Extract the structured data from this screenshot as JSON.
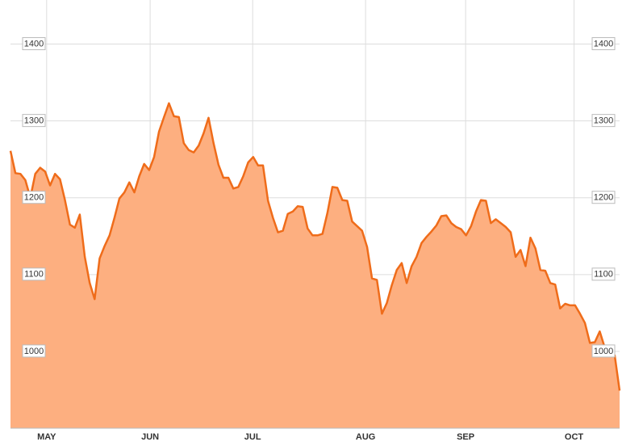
{
  "chart_data": {
    "type": "area",
    "values": [
      1261,
      1232,
      1231,
      1223,
      1200,
      1231,
      1239,
      1234,
      1216,
      1231,
      1224,
      1197,
      1165,
      1161,
      1178,
      1123,
      1089,
      1068,
      1121,
      1137,
      1151,
      1174,
      1199,
      1207,
      1220,
      1207,
      1228,
      1244,
      1236,
      1253,
      1286,
      1305,
      1323,
      1306,
      1305,
      1271,
      1262,
      1259,
      1268,
      1284,
      1304,
      1271,
      1243,
      1226,
      1226,
      1212,
      1214,
      1228,
      1246,
      1253,
      1242,
      1242,
      1196,
      1174,
      1155,
      1157,
      1179,
      1182,
      1189,
      1188,
      1160,
      1151,
      1151,
      1153,
      1180,
      1214,
      1213,
      1197,
      1196,
      1169,
      1163,
      1157,
      1136,
      1095,
      1093,
      1049,
      1063,
      1086,
      1106,
      1115,
      1089,
      1111,
      1123,
      1141,
      1149,
      1156,
      1164,
      1176,
      1177,
      1167,
      1162,
      1159,
      1151,
      1163,
      1182,
      1197,
      1196,
      1167,
      1172,
      1167,
      1162,
      1155,
      1123,
      1132,
      1111,
      1148,
      1134,
      1106,
      1105,
      1089,
      1087,
      1056,
      1062,
      1060,
      1060,
      1049,
      1037,
      1011,
      1012,
      1026,
      1005,
      1000,
      995,
      949
    ],
    "color": "#ef6c1a",
    "fill": "#fdaf80",
    "xlim": [
      0,
      123
    ],
    "xticks": [
      {
        "value": 7.3,
        "label": "MAY"
      },
      {
        "value": 28.2,
        "label": "JUN"
      },
      {
        "value": 48.9,
        "label": "JUL"
      },
      {
        "value": 71.7,
        "label": "AUG"
      },
      {
        "value": 91.9,
        "label": "SEP"
      },
      {
        "value": 113.8,
        "label": "OCT"
      }
    ],
    "ylim": [
      900,
      1450
    ],
    "yticks": [
      1000,
      1100,
      1200,
      1300,
      1400
    ],
    "grid": true
  }
}
